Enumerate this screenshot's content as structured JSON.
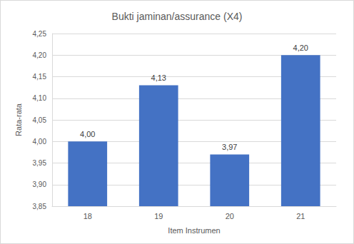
{
  "chart_data": {
    "type": "bar",
    "title": "Bukti jaminan/assurance (X4)",
    "x_label": "Item Instrumen",
    "y_label": "Rata-rata",
    "categories": [
      "18",
      "19",
      "20",
      "21"
    ],
    "values": [
      4.0,
      4.13,
      3.97,
      4.2
    ],
    "value_labels": [
      "4,00",
      "4,13",
      "3,97",
      "4,20"
    ],
    "data_labels": true,
    "color": "#4472c4",
    "ylim": [
      3.85,
      4.25
    ],
    "yticks": [
      {
        "value": 3.85,
        "label": "3,85"
      },
      {
        "value": 3.9,
        "label": "3,90"
      },
      {
        "value": 3.95,
        "label": "3,95"
      },
      {
        "value": 4.0,
        "label": "4,00"
      },
      {
        "value": 4.05,
        "label": "4,05"
      },
      {
        "value": 4.1,
        "label": "4,10"
      },
      {
        "value": 4.15,
        "label": "4,15"
      },
      {
        "value": 4.2,
        "label": "4,20"
      },
      {
        "value": 4.25,
        "label": "4,25"
      }
    ],
    "grid": true
  }
}
